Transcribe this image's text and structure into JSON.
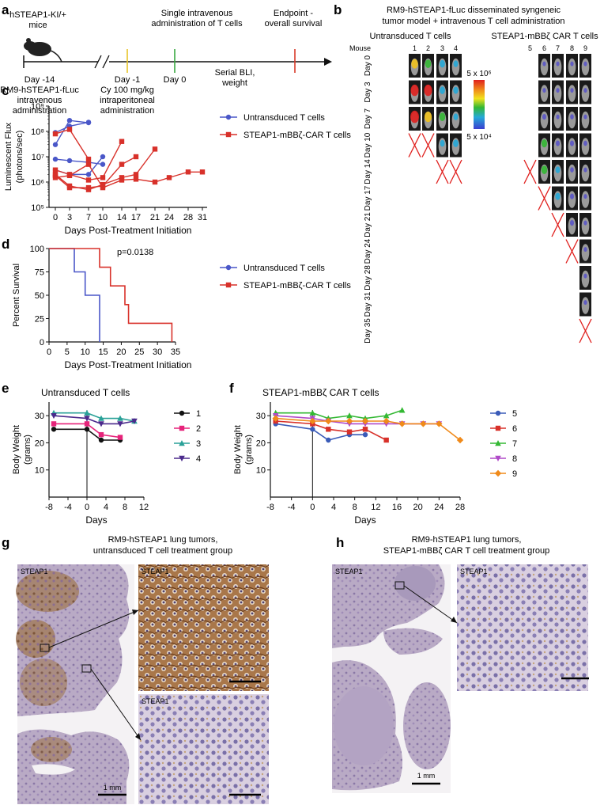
{
  "panels": {
    "a": "a",
    "b": "b",
    "c": "c",
    "d": "d",
    "e": "e",
    "f": "f",
    "g": "g",
    "h": "h"
  },
  "timeline": {
    "mouse_label_1": "hSTEAP1-KI/+",
    "mouse_label_2": "mice",
    "event_t_1": "Single intravenous",
    "event_t_2": "administration of T cells",
    "endpoint_1": "Endpoint -",
    "endpoint_2": "overall survival",
    "day_m14": "Day -14",
    "day_m14_desc_1": "RM9-hSTEAP1-fLuc",
    "day_m14_desc_2": "intravenous",
    "day_m14_desc_3": "administration",
    "day_m1": "Day -1",
    "day_m1_desc_1": "Cy 100 mg/kg",
    "day_m1_desc_2": "intraperitoneal",
    "day_m1_desc_3": "administration",
    "day_0": "Day 0",
    "serial_1": "Serial BLI,",
    "serial_2": "weight",
    "colors": {
      "day_m1": "#e8c42a",
      "day_0": "#3aa843",
      "endpoint": "#d93a2a"
    }
  },
  "bli": {
    "title_1": "RM9-hSTEAP1-fLuc disseminated syngeneic",
    "title_2": "tumor model + intravenous T cell administration",
    "group_untrans": "Untransduced T cells",
    "group_car": "STEAP1-mBBζ CAR T cells",
    "mouse_header": "Mouse",
    "mice": [
      "1",
      "2",
      "3",
      "4",
      "5",
      "6",
      "7",
      "8",
      "9"
    ],
    "days": [
      "Day 0",
      "Day 3",
      "Day 7",
      "Day 10",
      "Day 14",
      "Day 17",
      "Day 21",
      "Day 24",
      "Day 28",
      "Day 31",
      "Day 35"
    ],
    "scale_max": "5 x 10⁶",
    "scale_min": "5 x 10⁴"
  },
  "panel_c": {
    "ylabel_1": "Luminescent Flux",
    "ylabel_2": "(photons/sec)",
    "xlabel": "Days Post-Treatment Initiation",
    "ytick_labels": [
      "10⁵",
      "10⁶",
      "10⁷",
      "10⁸",
      "10⁹"
    ],
    "xtick_labels": [
      "0",
      "3",
      "7",
      "10",
      "14",
      "17",
      "21",
      "24",
      "28",
      "31"
    ],
    "legend": [
      "Untransduced T cells",
      "STEAP1-mBBζ-CAR T cells"
    ]
  },
  "panel_d": {
    "ylabel": "Percent Survival",
    "xlabel": "Days Post-Treatment Initiation",
    "pvalue": "p=0.0138",
    "ytick_labels": [
      "0",
      "25",
      "50",
      "75",
      "100"
    ],
    "xtick_labels": [
      "0",
      "5",
      "10",
      "15",
      "20",
      "25",
      "30",
      "35"
    ],
    "legend": [
      "Untransduced T cells",
      "STEAP1-mBBζ-CAR T cells"
    ]
  },
  "panel_e": {
    "title": "Untransduced T cells",
    "ylabel_1": "Body Weight",
    "ylabel_2": "(grams)",
    "xlabel": "Days",
    "ytick_labels": [
      "10",
      "20",
      "30"
    ],
    "xtick_labels": [
      "-8",
      "-4",
      "0",
      "4",
      "8",
      "12"
    ],
    "legend": [
      "1",
      "2",
      "3",
      "4"
    ]
  },
  "panel_f": {
    "title": "STEAP1-mBBζ CAR T cells",
    "ylabel_1": "Body Weight",
    "ylabel_2": "(grams)",
    "xlabel": "Days",
    "ytick_labels": [
      "10",
      "20",
      "30"
    ],
    "xtick_labels": [
      "-8",
      "-4",
      "0",
      "4",
      "8",
      "12",
      "16",
      "20",
      "24",
      "28"
    ],
    "legend": [
      "5",
      "6",
      "7",
      "8",
      "9"
    ]
  },
  "panel_g": {
    "title_1": "RM9-hSTEAP1 lung tumors,",
    "title_2": "untransduced T cell treatment group",
    "stain": "STEAP1",
    "scale": "1 mm"
  },
  "panel_h": {
    "title_1": "RM9-hSTEAP1 lung tumors,",
    "title_2": "STEAP1-mBBζ CAR T cell treatment group",
    "stain": "STEAP1",
    "scale": "1 mm"
  },
  "chart_data": [
    {
      "type": "line",
      "id": "c",
      "xlabel": "Days Post-Treatment Initiation",
      "ylabel": "Luminescent Flux (photons/sec)",
      "yscale": "log",
      "ylim": [
        100000,
        1000000000
      ],
      "xticks": [
        0,
        3,
        7,
        10,
        14,
        17,
        21,
        24,
        28,
        31
      ],
      "series": [
        {
          "name": "Untransduced T cells",
          "color": "#4a57c8",
          "marker": "circle",
          "lines": [
            [
              [
                0,
                30000000
              ],
              [
                3,
                270000000
              ],
              [
                7,
                220000000
              ]
            ],
            [
              [
                0,
                90000000
              ],
              [
                3,
                160000000
              ],
              [
                7,
                230000000
              ]
            ],
            [
              [
                0,
                8000000
              ],
              [
                3,
                7000000
              ],
              [
                7,
                6000000
              ],
              [
                10,
                5000000
              ]
            ],
            [
              [
                0,
                3000000
              ],
              [
                3,
                2000000
              ],
              [
                7,
                2000000
              ],
              [
                10,
                10000000
              ]
            ]
          ]
        },
        {
          "name": "STEAP1-mBBζ-CAR T cells",
          "color": "#d8312a",
          "marker": "square",
          "lines": [
            [
              [
                0,
                80000000
              ],
              [
                3,
                120000000
              ],
              [
                7,
                8000000
              ]
            ],
            [
              [
                0,
                3000000
              ],
              [
                3,
                2000000
              ],
              [
                7,
                1200000
              ],
              [
                10,
                1500000
              ],
              [
                14,
                40000000
              ]
            ],
            [
              [
                0,
                2000000
              ],
              [
                3,
                700000
              ],
              [
                7,
                500000
              ],
              [
                10,
                800000
              ],
              [
                14,
                1500000
              ],
              [
                17,
                2000000
              ],
              [
                21,
                20000000
              ]
            ],
            [
              [
                0,
                1800000
              ],
              [
                3,
                600000
              ],
              [
                7,
                600000
              ],
              [
                10,
                700000
              ],
              [
                14,
                5000000
              ],
              [
                17,
                10000000
              ]
            ],
            [
              [
                0,
                1500000
              ],
              [
                3,
                1800000
              ],
              [
                7,
                5000000
              ],
              [
                10,
                600000
              ],
              [
                14,
                1200000
              ],
              [
                17,
                1300000
              ],
              [
                21,
                1000000
              ],
              [
                24,
                1500000
              ],
              [
                28,
                2500000
              ],
              [
                31,
                2500000
              ]
            ]
          ]
        }
      ]
    },
    {
      "type": "line",
      "id": "d",
      "xlabel": "Days Post-Treatment Initiation",
      "ylabel": "Percent Survival",
      "ylim": [
        0,
        100
      ],
      "xlim": [
        0,
        35
      ],
      "series": [
        {
          "name": "Untransduced T cells",
          "color": "#4a57c8",
          "step": [
            [
              0,
              100
            ],
            [
              7,
              100
            ],
            [
              7,
              75
            ],
            [
              10,
              75
            ],
            [
              10,
              50
            ],
            [
              14,
              50
            ],
            [
              14,
              0
            ]
          ]
        },
        {
          "name": "STEAP1-mBBζ-CAR T cells",
          "color": "#d8312a",
          "step": [
            [
              0,
              100
            ],
            [
              14,
              100
            ],
            [
              14,
              80
            ],
            [
              17,
              80
            ],
            [
              17,
              60
            ],
            [
              21,
              60
            ],
            [
              21,
              40
            ],
            [
              22,
              40
            ],
            [
              22,
              20
            ],
            [
              34,
              20
            ],
            [
              34,
              0
            ]
          ]
        }
      ]
    },
    {
      "type": "line",
      "id": "e",
      "xlabel": "Days",
      "ylabel": "Body Weight (grams)",
      "ylim": [
        0,
        35
      ],
      "xlim": [
        -8,
        12
      ],
      "series": [
        {
          "name": "1",
          "color": "#111111",
          "marker": "circle",
          "points": [
            [
              -7,
              25
            ],
            [
              0,
              25
            ],
            [
              3,
              21
            ],
            [
              7,
              21
            ]
          ]
        },
        {
          "name": "2",
          "color": "#e6237a",
          "marker": "square",
          "points": [
            [
              -7,
              27
            ],
            [
              0,
              27
            ],
            [
              3,
              23
            ],
            [
              7,
              22
            ]
          ]
        },
        {
          "name": "3",
          "color": "#2aa198",
          "marker": "triangle",
          "points": [
            [
              -7,
              31
            ],
            [
              0,
              31
            ],
            [
              3,
              29
            ],
            [
              7,
              29
            ],
            [
              10,
              28
            ]
          ]
        },
        {
          "name": "4",
          "color": "#4b2a8c",
          "marker": "triangle-down",
          "points": [
            [
              -7,
              30
            ],
            [
              0,
              29
            ],
            [
              3,
              27
            ],
            [
              7,
              27
            ],
            [
              10,
              28
            ]
          ]
        }
      ]
    },
    {
      "type": "line",
      "id": "f",
      "xlabel": "Days",
      "ylabel": "Body Weight (grams)",
      "ylim": [
        0,
        35
      ],
      "xlim": [
        -8,
        28
      ],
      "series": [
        {
          "name": "5",
          "color": "#3a5bb8",
          "marker": "circle",
          "points": [
            [
              -7,
              27
            ],
            [
              0,
              25
            ],
            [
              3,
              21
            ],
            [
              7,
              23
            ],
            [
              10,
              23
            ]
          ]
        },
        {
          "name": "6",
          "color": "#d8312a",
          "marker": "square",
          "points": [
            [
              -7,
              28
            ],
            [
              0,
              27
            ],
            [
              3,
              25
            ],
            [
              7,
              24
            ],
            [
              10,
              25
            ],
            [
              14,
              21
            ]
          ]
        },
        {
          "name": "7",
          "color": "#33b833",
          "marker": "triangle",
          "points": [
            [
              -7,
              31
            ],
            [
              0,
              31
            ],
            [
              3,
              29
            ],
            [
              7,
              30
            ],
            [
              10,
              29
            ],
            [
              14,
              30
            ],
            [
              17,
              32
            ]
          ]
        },
        {
          "name": "8",
          "color": "#b04ac8",
          "marker": "triangle-down",
          "points": [
            [
              -7,
              30
            ],
            [
              0,
              29
            ],
            [
              3,
              28
            ],
            [
              7,
              27
            ],
            [
              10,
              27
            ],
            [
              14,
              27
            ],
            [
              17,
              27
            ],
            [
              21,
              27
            ],
            [
              24,
              27
            ]
          ]
        },
        {
          "name": "9",
          "color": "#f08a1a",
          "marker": "diamond",
          "points": [
            [
              -7,
              29
            ],
            [
              0,
              28
            ],
            [
              3,
              28
            ],
            [
              7,
              28
            ],
            [
              10,
              28
            ],
            [
              14,
              28
            ],
            [
              17,
              27
            ],
            [
              21,
              27
            ],
            [
              24,
              27
            ],
            [
              28,
              21
            ]
          ]
        }
      ]
    }
  ]
}
